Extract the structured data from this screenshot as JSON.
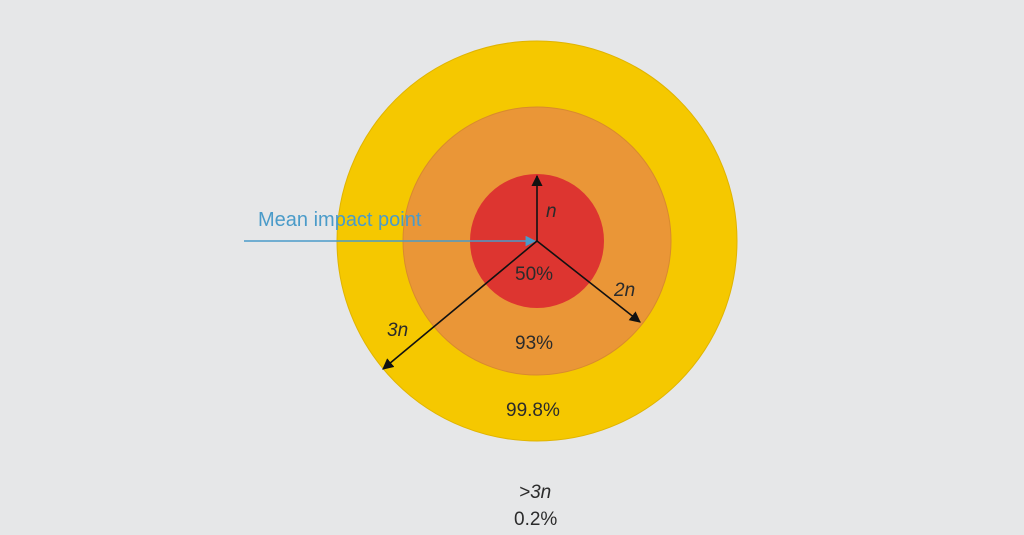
{
  "zones": [
    {
      "percentage": "50%",
      "radius_label": "n",
      "color": "#dd3530"
    },
    {
      "percentage": "93%",
      "radius_label": "2n",
      "color": "#ea9637"
    },
    {
      "percentage": "99.8%",
      "radius_label": "3n",
      "color": "#f5c800"
    }
  ],
  "mean_impact_point_label": "Mean impact point",
  "arrow_color": "#4a9bc9",
  "outside": {
    "radius_label": ">3n",
    "percentage": "0.2%"
  }
}
